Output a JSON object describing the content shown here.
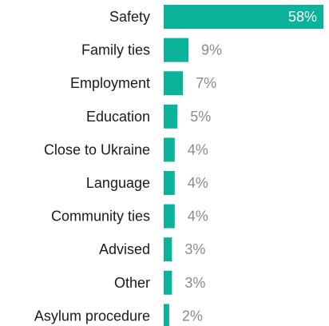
{
  "chart_data": {
    "type": "bar",
    "orientation": "horizontal",
    "categories": [
      "Safety",
      "Family ties",
      "Employment",
      "Education",
      "Close to Ukraine",
      "Language",
      "Community ties",
      "Advised",
      "Other",
      "Asylum procedure"
    ],
    "values": [
      58,
      9,
      7,
      5,
      4,
      4,
      4,
      3,
      3,
      2
    ],
    "value_labels": [
      "58%",
      "9%",
      "7%",
      "5%",
      "4%",
      "4%",
      "4%",
      "3%",
      "3%",
      "2%"
    ],
    "unit": "%",
    "xlim": [
      0,
      58
    ],
    "title": "",
    "xlabel": "",
    "ylabel": "",
    "grid": false,
    "legend": "none",
    "colors": {
      "bar": "#0bb39a",
      "inside_label": "#ffffff",
      "outside_label": "#8a8a8a",
      "category_label": "#1a1a1a"
    }
  }
}
